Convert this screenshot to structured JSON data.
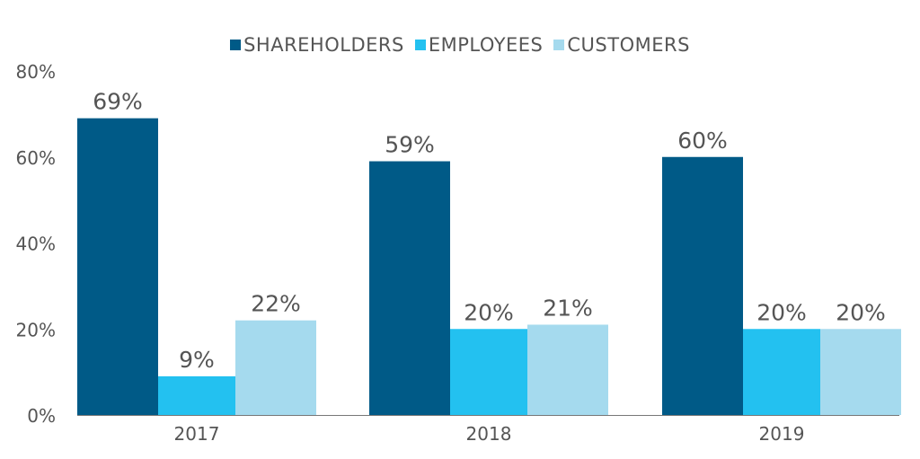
{
  "colors": {
    "shareholders": "#005a87",
    "employees": "#23c1f0",
    "customers": "#a5daee",
    "text": "#555555",
    "axis": "#777777"
  },
  "legend": [
    {
      "label": "SHAREHOLDERS",
      "color": "#005a87"
    },
    {
      "label": "EMPLOYEES",
      "color": "#23c1f0"
    },
    {
      "label": "CUSTOMERS",
      "color": "#a5daee"
    }
  ],
  "chart_data": {
    "type": "bar",
    "title": "",
    "xlabel": "",
    "ylabel": "",
    "categories": [
      "2017",
      "2018",
      "2019"
    ],
    "ylim": [
      0,
      80
    ],
    "yticks": [
      "0%",
      "20%",
      "40%",
      "60%",
      "80%"
    ],
    "ytick_values": [
      0,
      20,
      40,
      60,
      80
    ],
    "legend_position": "top-center",
    "grid": false,
    "series": [
      {
        "name": "SHAREHOLDERS",
        "values": [
          69,
          59,
          60
        ],
        "labels": [
          "69%",
          "59%",
          "60%"
        ]
      },
      {
        "name": "EMPLOYEES",
        "values": [
          9,
          20,
          20
        ],
        "labels": [
          "9%",
          "20%",
          "20%"
        ]
      },
      {
        "name": "CUSTOMERS",
        "values": [
          22,
          21,
          20
        ],
        "labels": [
          "22%",
          "21%",
          "20%"
        ]
      }
    ]
  }
}
